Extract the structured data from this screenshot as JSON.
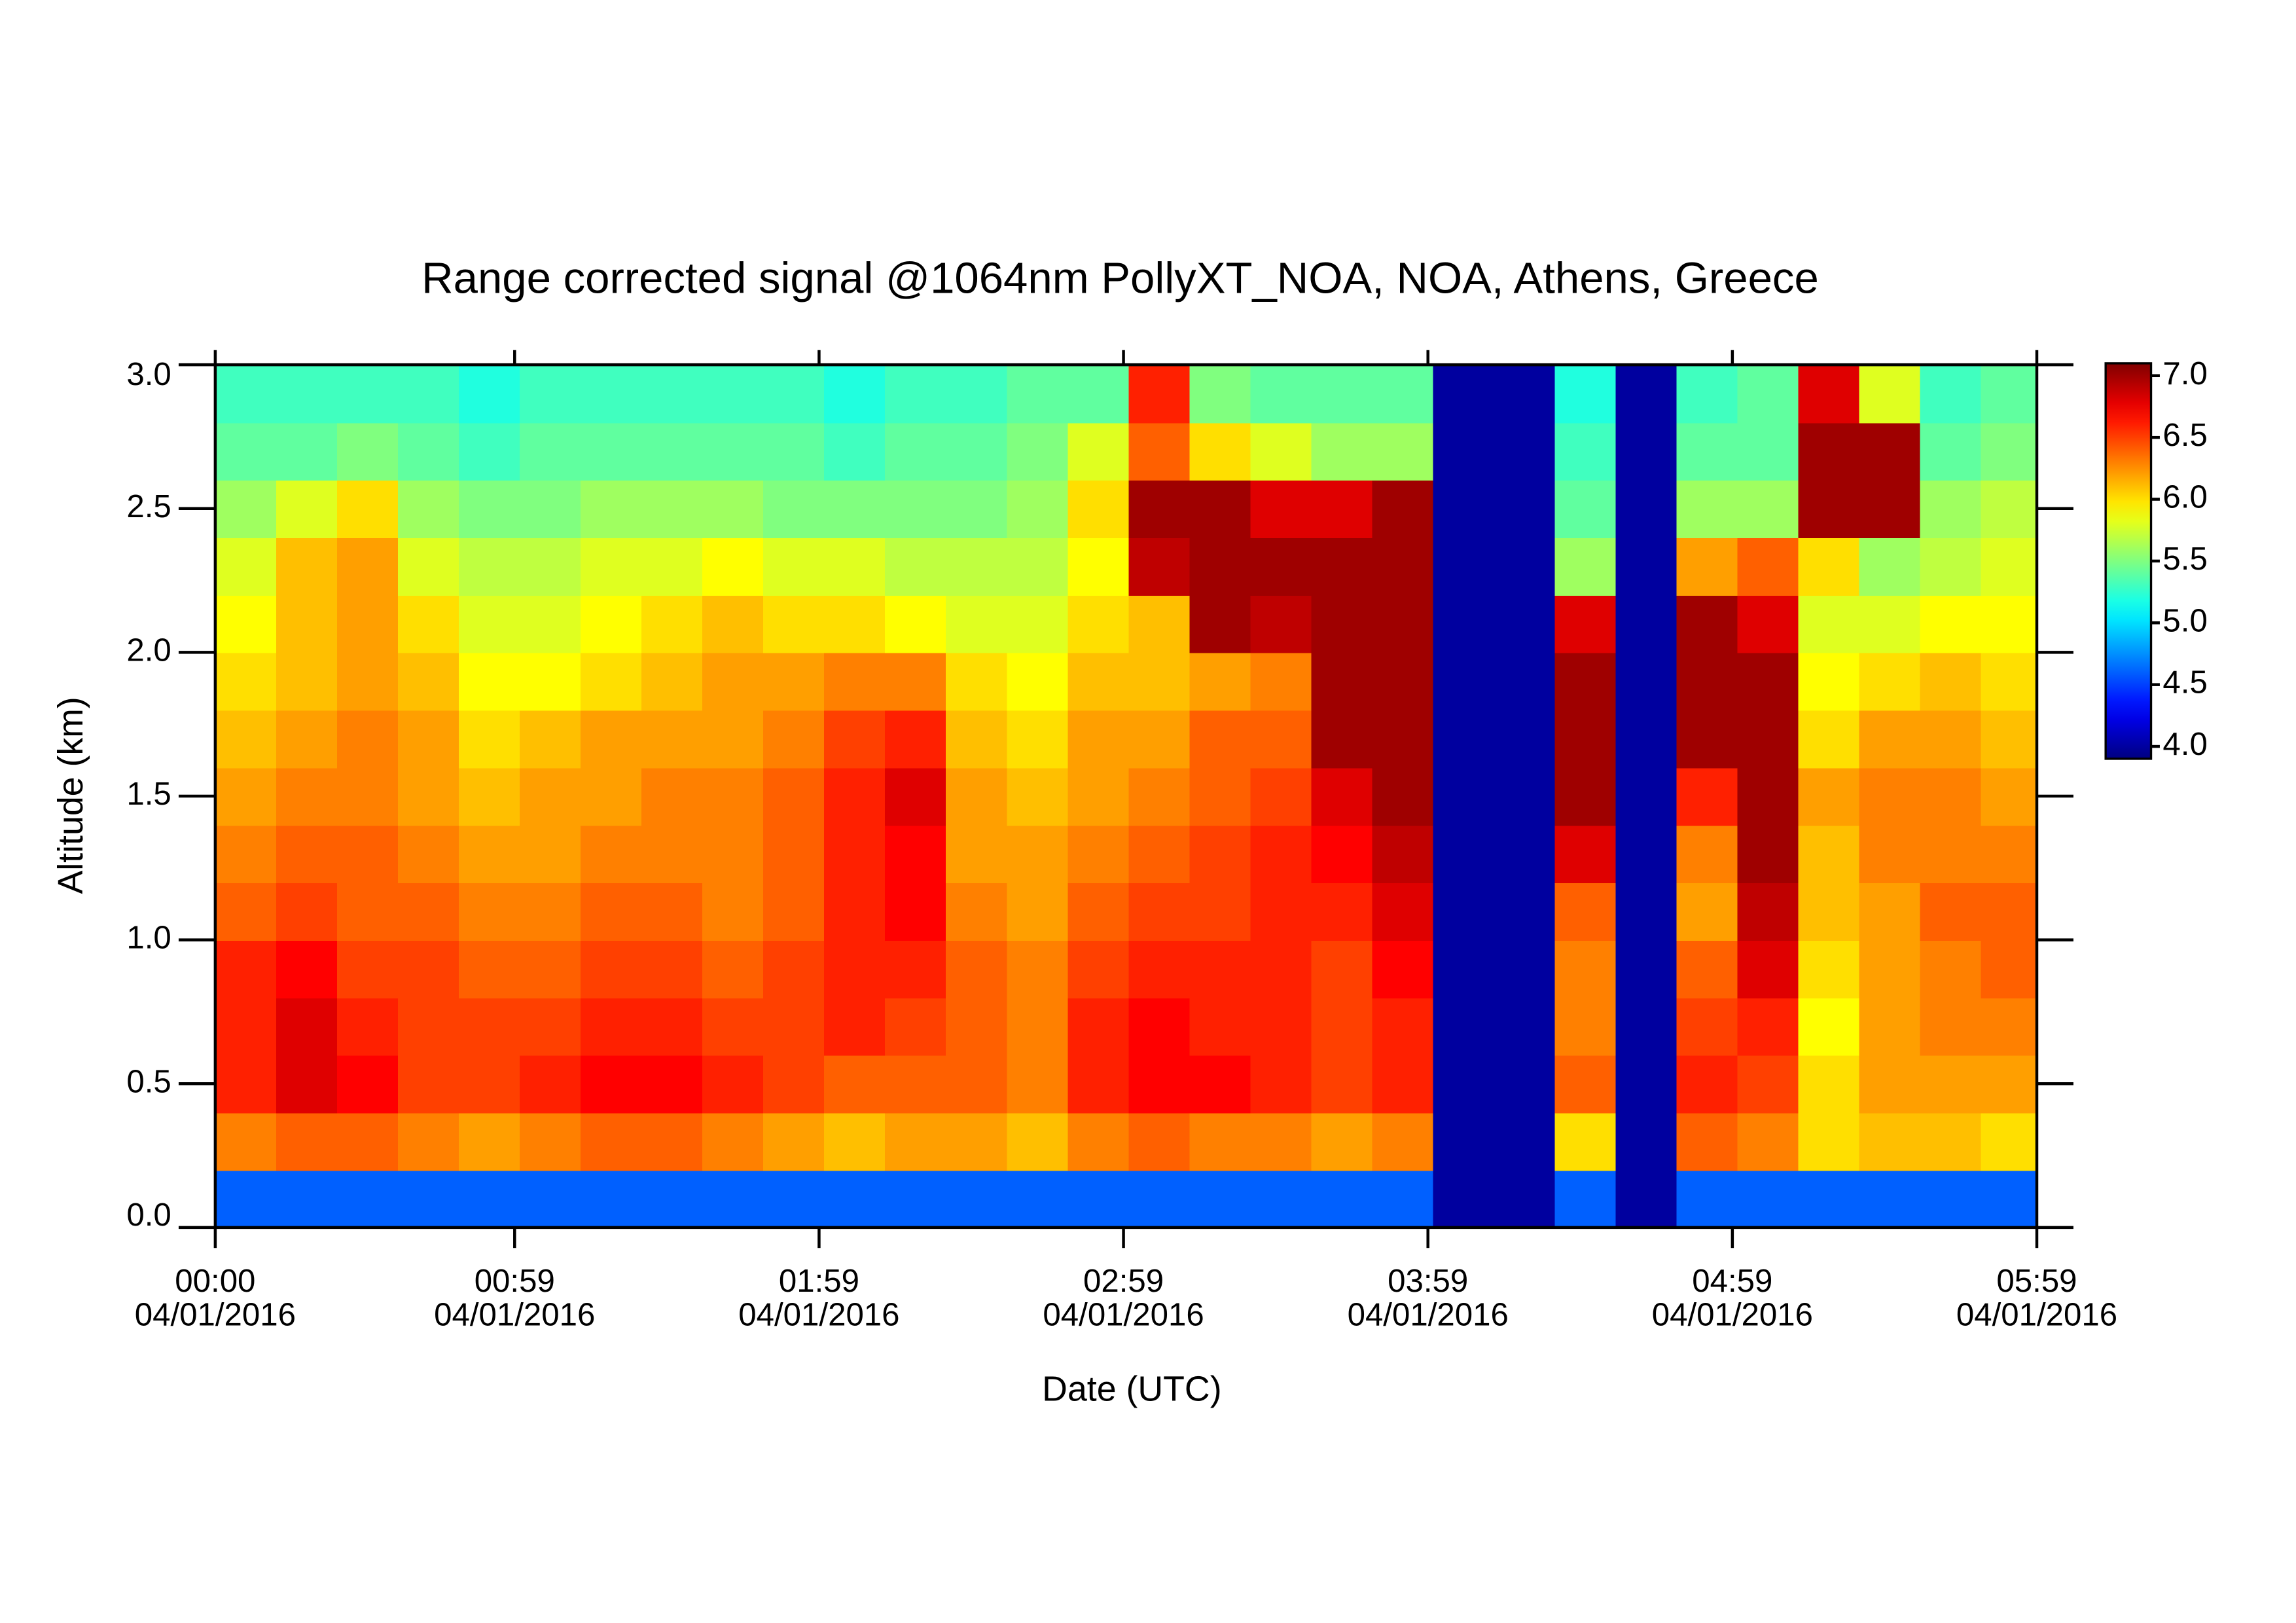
{
  "chart_data": {
    "type": "heatmap",
    "title": "Range corrected signal @1064nm  PollyXT_NOA, NOA, Athens, Greece",
    "xlabel": "Date (UTC)",
    "ylabel": "Altitude (km)",
    "colormap": "jet",
    "xlim": [
      0,
      359
    ],
    "xticks": [
      {
        "value": 0,
        "label": "00:00"
      },
      {
        "value": 59,
        "label": "00:59"
      },
      {
        "value": 119,
        "label": "01:59"
      },
      {
        "value": 179,
        "label": "02:59"
      },
      {
        "value": 239,
        "label": "03:59"
      },
      {
        "value": 299,
        "label": "04:59"
      },
      {
        "value": 359,
        "label": "05:59"
      }
    ],
    "xtick_dates": [
      "04/01/2016",
      "04/01/2016",
      "04/01/2016",
      "04/01/2016",
      "04/01/2016",
      "04/01/2016",
      "04/01/2016"
    ],
    "ylim": [
      0,
      3
    ],
    "yticks": [
      {
        "value": 0,
        "label": "0.0"
      },
      0.5,
      {
        "value": 1,
        "label": "1.0"
      },
      1.5,
      {
        "value": 2,
        "label": "2.0"
      },
      2.5,
      {
        "value": 3,
        "label": "3.0"
      }
    ],
    "zlim": [
      3.9,
      7.1
    ],
    "zticks": [
      {
        "value": 4,
        "label": "4.0"
      },
      4.5,
      {
        "value": 5,
        "label": "5.0"
      },
      5.5,
      {
        "value": 6,
        "label": "6.0"
      },
      6.5,
      {
        "value": 7,
        "label": "7.0"
      }
    ],
    "x": [
      6,
      18,
      30,
      42,
      54,
      66,
      78,
      90,
      102,
      114,
      126,
      138,
      150,
      162,
      174,
      186,
      198,
      210,
      222,
      234,
      246,
      258,
      270,
      282,
      294,
      306,
      318,
      330,
      342,
      354
    ],
    "y": [
      0.1,
      0.3,
      0.5,
      0.7,
      0.9,
      1.1,
      1.3,
      1.5,
      1.7,
      1.9,
      2.1,
      2.3,
      2.5,
      2.7,
      2.9
    ],
    "z": [
      [
        4.6,
        4.6,
        4.6,
        4.6,
        4.6,
        4.6,
        4.6,
        4.6,
        4.6,
        4.6,
        4.6,
        4.6,
        4.6,
        4.6,
        4.6,
        4.6,
        4.6,
        4.6,
        4.6,
        4.6,
        4.0,
        4.0,
        4.6,
        4.0,
        4.6,
        4.6,
        4.6,
        4.6,
        4.6,
        4.6
      ],
      [
        6.3,
        6.4,
        6.4,
        6.3,
        6.2,
        6.3,
        6.4,
        6.4,
        6.3,
        6.2,
        6.1,
        6.2,
        6.2,
        6.1,
        6.3,
        6.4,
        6.3,
        6.3,
        6.2,
        6.3,
        4.0,
        4.0,
        6.0,
        4.0,
        6.4,
        6.3,
        6.0,
        6.1,
        6.1,
        6.0
      ],
      [
        6.6,
        6.8,
        6.7,
        6.5,
        6.5,
        6.6,
        6.7,
        6.7,
        6.6,
        6.5,
        6.4,
        6.4,
        6.4,
        6.3,
        6.6,
        6.7,
        6.7,
        6.6,
        6.5,
        6.6,
        4.0,
        4.0,
        6.4,
        4.0,
        6.6,
        6.5,
        6.0,
        6.2,
        6.2,
        6.2
      ],
      [
        6.6,
        6.8,
        6.6,
        6.5,
        6.5,
        6.5,
        6.6,
        6.6,
        6.5,
        6.5,
        6.6,
        6.5,
        6.4,
        6.3,
        6.6,
        6.7,
        6.6,
        6.6,
        6.5,
        6.6,
        4.0,
        4.0,
        6.3,
        4.0,
        6.5,
        6.6,
        5.9,
        6.2,
        6.3,
        6.3
      ],
      [
        6.6,
        6.7,
        6.5,
        6.5,
        6.4,
        6.4,
        6.5,
        6.5,
        6.4,
        6.5,
        6.6,
        6.6,
        6.4,
        6.3,
        6.5,
        6.6,
        6.6,
        6.6,
        6.5,
        6.7,
        4.0,
        4.0,
        6.3,
        4.0,
        6.4,
        6.8,
        6.0,
        6.2,
        6.3,
        6.4
      ],
      [
        6.4,
        6.5,
        6.4,
        6.4,
        6.3,
        6.3,
        6.4,
        6.4,
        6.3,
        6.4,
        6.6,
        6.7,
        6.3,
        6.2,
        6.4,
        6.5,
        6.5,
        6.6,
        6.6,
        6.8,
        4.0,
        4.0,
        6.4,
        4.0,
        6.2,
        6.9,
        6.1,
        6.2,
        6.4,
        6.4
      ],
      [
        6.3,
        6.4,
        6.4,
        6.3,
        6.2,
        6.2,
        6.3,
        6.3,
        6.3,
        6.4,
        6.6,
        6.7,
        6.2,
        6.2,
        6.3,
        6.4,
        6.5,
        6.6,
        6.7,
        6.9,
        4.0,
        4.0,
        6.8,
        4.0,
        6.3,
        7.0,
        6.1,
        6.3,
        6.3,
        6.3
      ],
      [
        6.2,
        6.3,
        6.3,
        6.2,
        6.1,
        6.2,
        6.2,
        6.3,
        6.3,
        6.4,
        6.6,
        6.8,
        6.2,
        6.1,
        6.2,
        6.3,
        6.4,
        6.5,
        6.8,
        7.0,
        4.0,
        4.0,
        7.0,
        4.0,
        6.6,
        7.0,
        6.2,
        6.3,
        6.3,
        6.2
      ],
      [
        6.1,
        6.2,
        6.3,
        6.2,
        6.0,
        6.1,
        6.2,
        6.2,
        6.2,
        6.3,
        6.5,
        6.6,
        6.1,
        6.0,
        6.2,
        6.2,
        6.4,
        6.4,
        7.0,
        7.0,
        4.0,
        4.0,
        7.0,
        4.0,
        7.0,
        7.0,
        6.0,
        6.2,
        6.2,
        6.1
      ],
      [
        6.0,
        6.1,
        6.2,
        6.1,
        5.9,
        5.9,
        6.0,
        6.1,
        6.2,
        6.2,
        6.3,
        6.3,
        6.0,
        5.9,
        6.1,
        6.1,
        6.2,
        6.3,
        7.0,
        7.0,
        4.0,
        4.0,
        7.0,
        4.0,
        7.0,
        7.0,
        5.9,
        6.0,
        6.1,
        6.0
      ],
      [
        5.9,
        6.1,
        6.2,
        6.0,
        5.8,
        5.8,
        5.9,
        6.0,
        6.1,
        6.0,
        6.0,
        5.9,
        5.8,
        5.8,
        6.0,
        6.1,
        7.0,
        6.9,
        7.0,
        7.0,
        4.0,
        4.0,
        6.8,
        4.0,
        7.0,
        6.8,
        5.8,
        5.8,
        5.9,
        5.9
      ],
      [
        5.8,
        6.1,
        6.2,
        5.8,
        5.7,
        5.7,
        5.8,
        5.8,
        5.9,
        5.8,
        5.8,
        5.7,
        5.7,
        5.7,
        5.9,
        6.9,
        7.0,
        7.0,
        7.0,
        7.0,
        4.0,
        4.0,
        5.6,
        4.0,
        6.2,
        6.4,
        6.0,
        5.6,
        5.7,
        5.8
      ],
      [
        5.6,
        5.8,
        6.0,
        5.6,
        5.5,
        5.5,
        5.6,
        5.6,
        5.6,
        5.5,
        5.5,
        5.5,
        5.5,
        5.6,
        6.0,
        7.0,
        7.0,
        6.8,
        6.8,
        7.0,
        4.0,
        4.0,
        5.4,
        4.0,
        5.6,
        5.6,
        7.0,
        7.0,
        5.6,
        5.7
      ],
      [
        5.4,
        5.4,
        5.5,
        5.4,
        5.3,
        5.4,
        5.4,
        5.4,
        5.4,
        5.4,
        5.3,
        5.4,
        5.4,
        5.5,
        5.8,
        6.4,
        6.0,
        5.8,
        5.6,
        5.6,
        4.0,
        4.0,
        5.3,
        4.0,
        5.4,
        5.4,
        7.0,
        7.0,
        5.4,
        5.5
      ],
      [
        5.3,
        5.3,
        5.3,
        5.3,
        5.2,
        5.3,
        5.3,
        5.3,
        5.3,
        5.3,
        5.2,
        5.3,
        5.3,
        5.4,
        5.4,
        6.6,
        5.5,
        5.4,
        5.4,
        5.4,
        4.0,
        4.0,
        5.2,
        4.0,
        5.3,
        5.4,
        6.8,
        5.8,
        5.3,
        5.4
      ]
    ]
  }
}
